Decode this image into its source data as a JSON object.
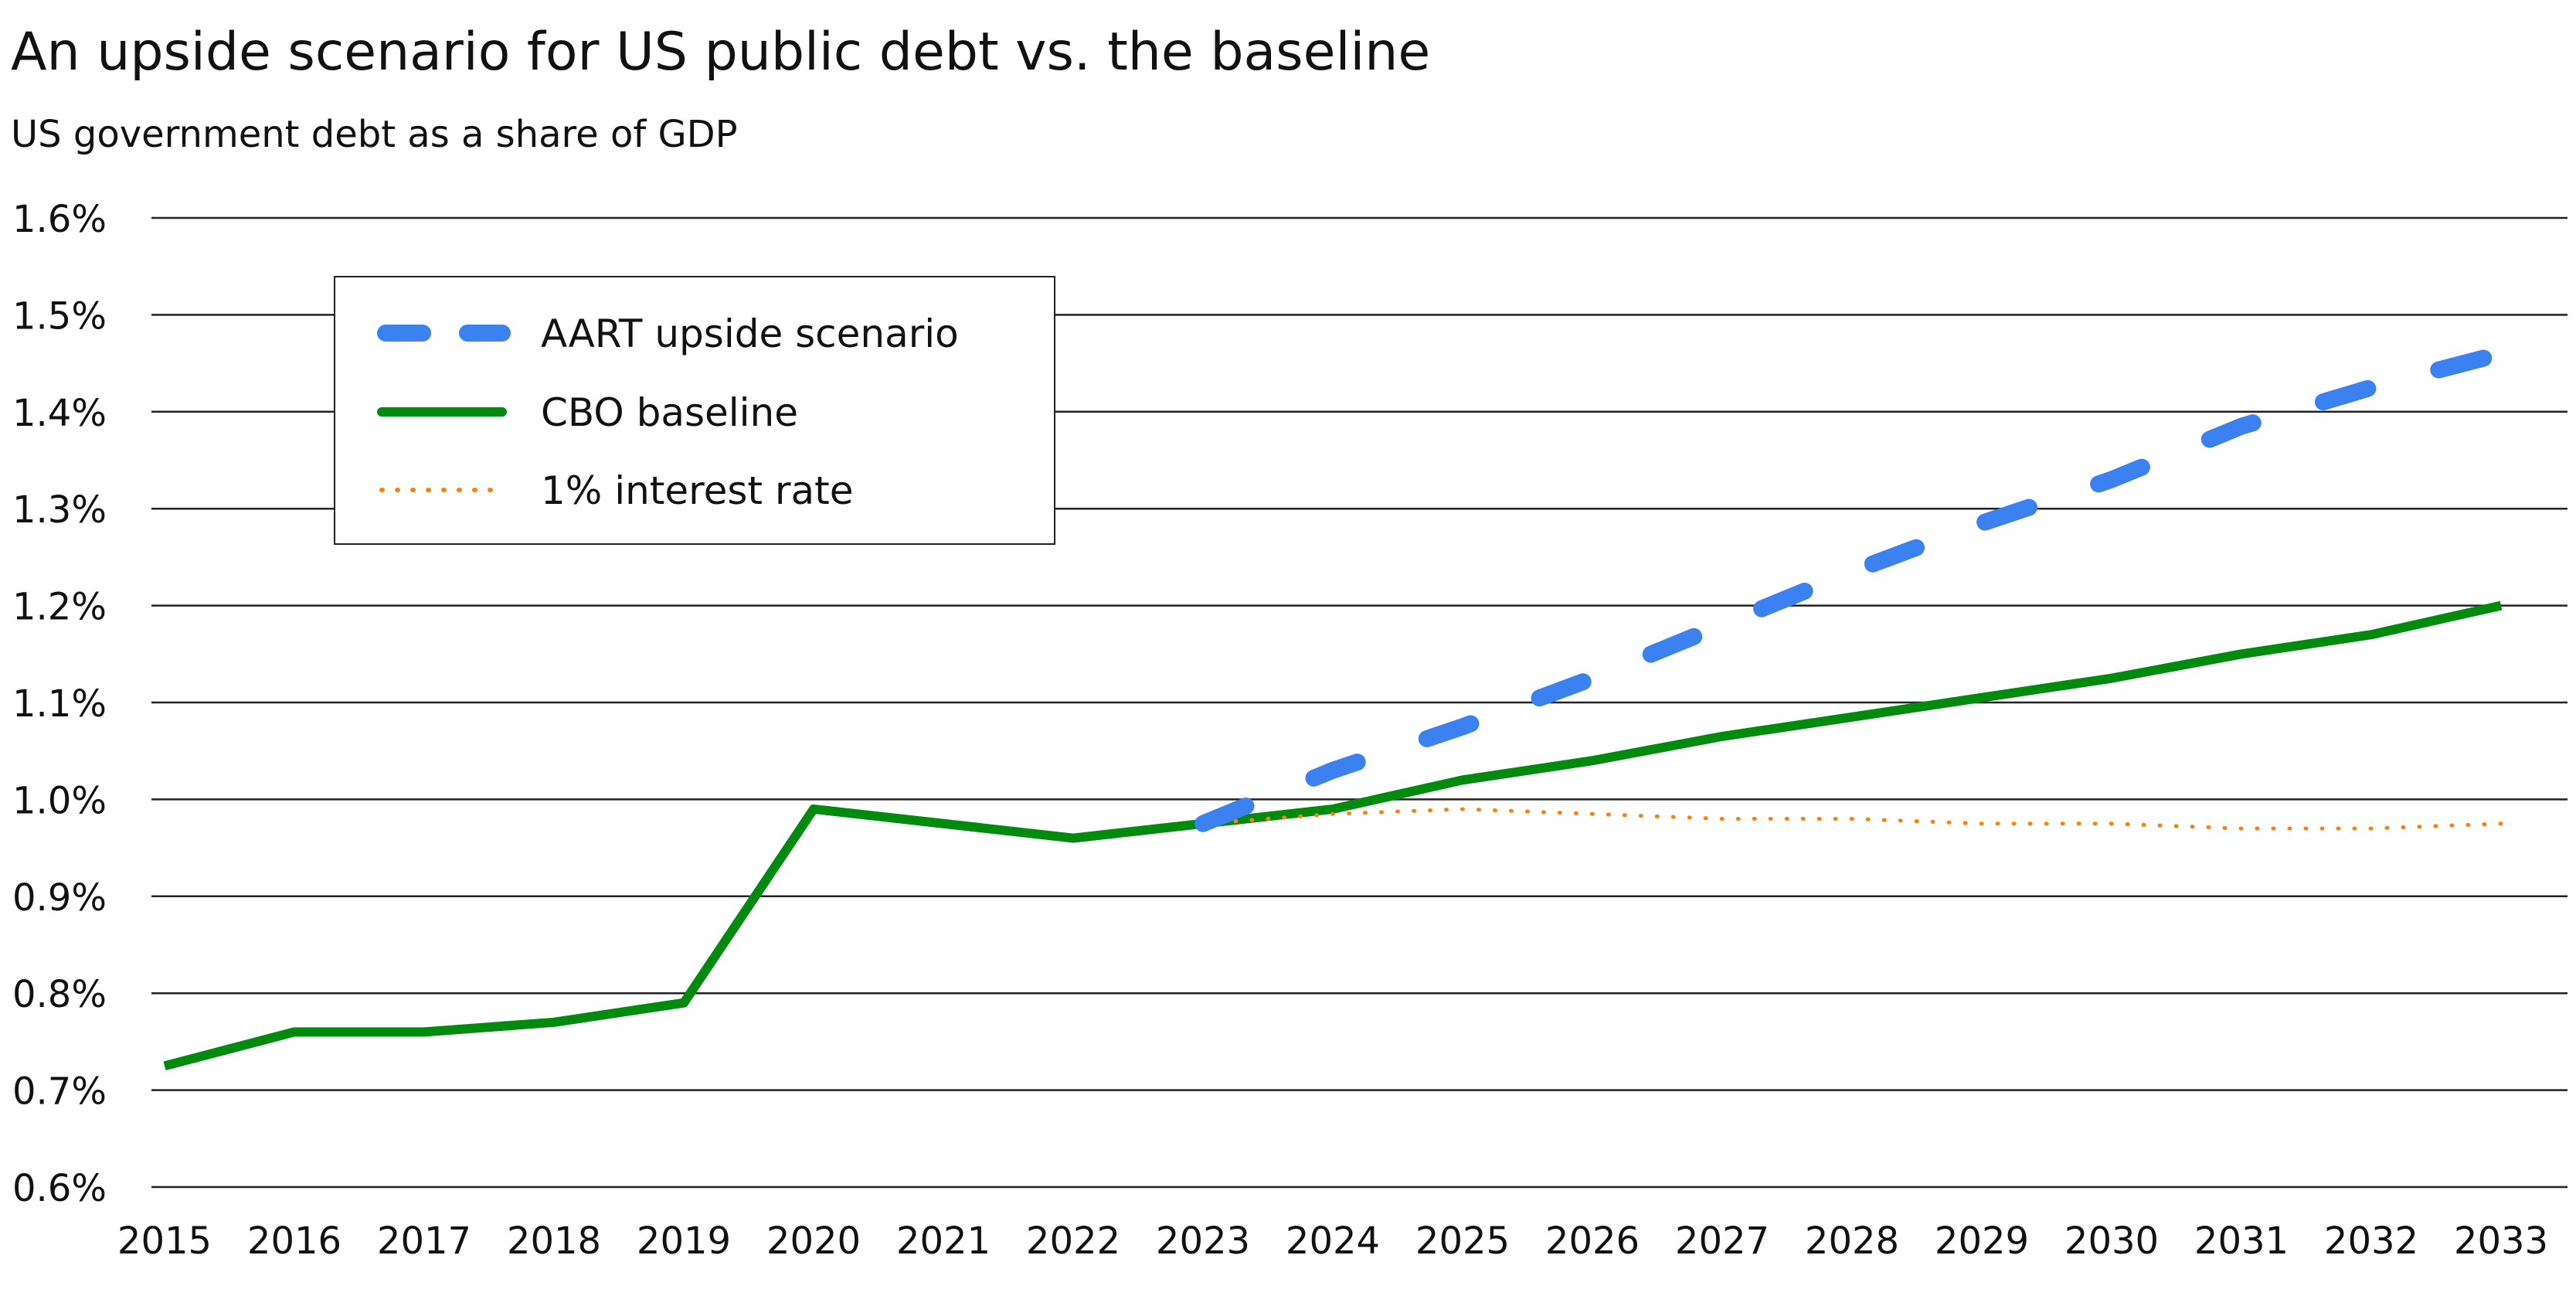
{
  "chart_data": {
    "type": "line",
    "title": "An upside scenario for US public debt vs. the baseline",
    "subtitle": "US government debt as a share of GDP",
    "xlabel": "",
    "ylabel": "",
    "x": [
      2015,
      2016,
      2017,
      2018,
      2019,
      2020,
      2021,
      2022,
      2023,
      2024,
      2025,
      2026,
      2027,
      2028,
      2029,
      2030,
      2031,
      2032,
      2033
    ],
    "ylim": [
      0.6,
      1.6
    ],
    "yticks": [
      0.6,
      0.7,
      0.8,
      0.9,
      1.0,
      1.1,
      1.2,
      1.3,
      1.4,
      1.5,
      1.6
    ],
    "ytick_labels": [
      "0.6%",
      "0.7%",
      "0.8%",
      "0.9%",
      "1.0%",
      "1.1%",
      "1.2%",
      "1.3%",
      "1.4%",
      "1.5%",
      "1.6%"
    ],
    "xtick_labels": [
      "2015",
      "2016",
      "2017",
      "2018",
      "2019",
      "2020",
      "2021",
      "2022",
      "2023",
      "2024",
      "2025",
      "2026",
      "2027",
      "2028",
      "2029",
      "2030",
      "2031",
      "2032",
      "2033"
    ],
    "grid": "horizontal",
    "legend_placement": "top-left",
    "series": [
      {
        "name": "AART upside scenario",
        "style": "dashed",
        "color": "#3b82f0",
        "x": [
          2023,
          2024,
          2025,
          2026,
          2027,
          2028,
          2029,
          2030,
          2031,
          2032,
          2033
        ],
        "values": [
          0.975,
          1.03,
          1.075,
          1.125,
          1.18,
          1.235,
          1.285,
          1.33,
          1.385,
          1.425,
          1.46
        ]
      },
      {
        "name": "CBO baseline",
        "style": "solid",
        "color": "#008a0e",
        "x": [
          2015,
          2016,
          2017,
          2018,
          2019,
          2020,
          2021,
          2022,
          2023,
          2024,
          2025,
          2026,
          2027,
          2028,
          2029,
          2030,
          2031,
          2032,
          2033
        ],
        "values": [
          0.725,
          0.76,
          0.76,
          0.77,
          0.79,
          0.99,
          0.975,
          0.96,
          0.975,
          0.99,
          1.02,
          1.04,
          1.065,
          1.085,
          1.105,
          1.125,
          1.15,
          1.17,
          1.2
        ]
      },
      {
        "name": "1% interest rate",
        "style": "dotted",
        "color": "#ff7f0e",
        "x": [
          2023,
          2024,
          2025,
          2026,
          2027,
          2028,
          2029,
          2030,
          2031,
          2032,
          2033
        ],
        "values": [
          0.975,
          0.985,
          0.99,
          0.985,
          0.98,
          0.98,
          0.975,
          0.975,
          0.97,
          0.97,
          0.975
        ]
      }
    ]
  }
}
